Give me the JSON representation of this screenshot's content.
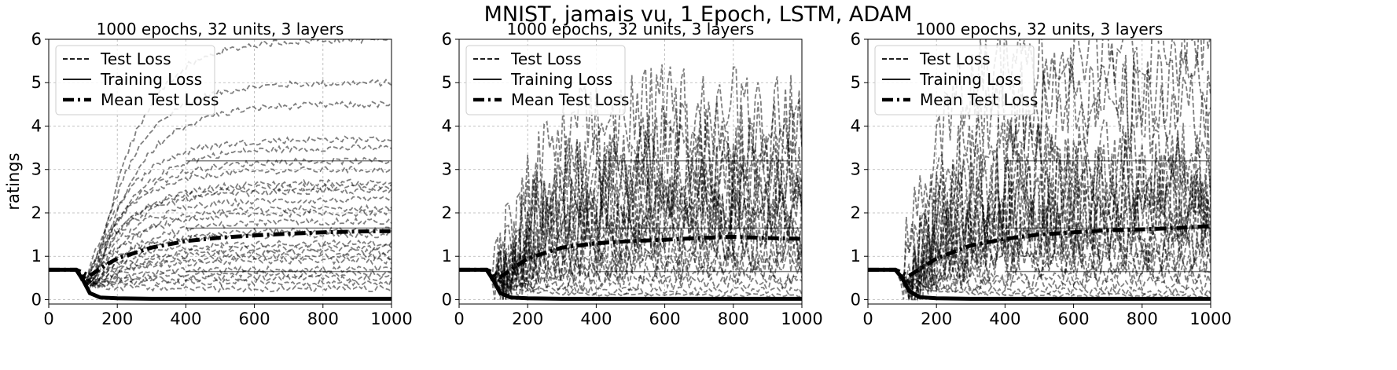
{
  "figure_title": "MNIST, jamais vu, 1 Epoch, LSTM, ADAM",
  "ylabel": "ratings",
  "chart_data": [
    {
      "type": "line",
      "title": "1000 epochs, 32 units, 3 layers",
      "xlim": [
        0,
        1000
      ],
      "ylim": [
        -0.1,
        6
      ],
      "xticks": [
        0,
        200,
        400,
        600,
        800,
        1000
      ],
      "yticks": [
        0,
        1,
        2,
        3,
        4,
        5,
        6
      ],
      "grid": true,
      "legend": {
        "placement": "top-left",
        "entries": [
          "Test Loss",
          "Training Loss",
          "Mean Test Loss"
        ]
      },
      "series": [
        {
          "name": "Mean Test Loss",
          "style": "dashdot",
          "x": [
            0,
            80,
            100,
            120,
            150,
            200,
            300,
            400,
            500,
            600,
            700,
            800,
            900,
            1000
          ],
          "y": [
            0.69,
            0.69,
            0.62,
            0.55,
            0.72,
            0.95,
            1.2,
            1.35,
            1.43,
            1.48,
            1.52,
            1.55,
            1.57,
            1.58
          ]
        },
        {
          "name": "Training Loss",
          "style": "solid",
          "x": [
            0,
            80,
            100,
            120,
            150,
            200,
            300,
            1000
          ],
          "y": [
            0.69,
            0.69,
            0.45,
            0.15,
            0.05,
            0.03,
            0.02,
            0.02
          ]
        }
      ],
      "test_runs_final": [
        5.0,
        6.0,
        4.5,
        3.7,
        3.5,
        3.2,
        3.0,
        2.7,
        2.6,
        2.5,
        2.3,
        2.1,
        2.0,
        1.8,
        1.6,
        1.5,
        1.3,
        1.2,
        1.1,
        1.0,
        0.9,
        0.7,
        0.6,
        0.5,
        0.4,
        0.25
      ]
    },
    {
      "type": "line",
      "title": "1000 epochs, 32 units, 3 layers",
      "xlim": [
        0,
        1000
      ],
      "ylim": [
        -0.1,
        6
      ],
      "xticks": [
        0,
        200,
        400,
        600,
        800,
        1000
      ],
      "yticks": [
        0,
        1,
        2,
        3,
        4,
        5,
        6
      ],
      "grid": true,
      "legend": {
        "placement": "top-left",
        "entries": [
          "Test Loss",
          "Training Loss",
          "Mean Test Loss"
        ]
      },
      "series": [
        {
          "name": "Mean Test Loss",
          "style": "dashdot",
          "x": [
            0,
            80,
            100,
            120,
            150,
            200,
            300,
            400,
            500,
            600,
            700,
            800,
            900,
            1000
          ],
          "y": [
            0.69,
            0.69,
            0.62,
            0.52,
            0.68,
            0.95,
            1.2,
            1.3,
            1.35,
            1.38,
            1.42,
            1.45,
            1.42,
            1.4
          ]
        },
        {
          "name": "Training Loss",
          "style": "solid",
          "x": [
            0,
            80,
            100,
            120,
            150,
            200,
            300,
            1000
          ],
          "y": [
            0.69,
            0.69,
            0.45,
            0.15,
            0.05,
            0.03,
            0.02,
            0.02
          ]
        }
      ],
      "test_runs_final": [
        4.4,
        3.5,
        3.2,
        3.0,
        2.8,
        2.5,
        2.2,
        2.0,
        1.7,
        1.6,
        1.5,
        1.2,
        1.0,
        0.8,
        0.6,
        0.4,
        0.2,
        0.1
      ]
    },
    {
      "type": "line",
      "title": "1000 epochs, 32 units, 3 layers",
      "xlim": [
        0,
        1000
      ],
      "ylim": [
        -0.1,
        6
      ],
      "xticks": [
        0,
        200,
        400,
        600,
        800,
        1000
      ],
      "yticks": [
        0,
        1,
        2,
        3,
        4,
        5,
        6
      ],
      "grid": true,
      "legend": {
        "placement": "top-left",
        "entries": [
          "Test Loss",
          "Training Loss",
          "Mean Test Loss"
        ]
      },
      "series": [
        {
          "name": "Mean Test Loss",
          "style": "dashdot",
          "x": [
            0,
            80,
            100,
            120,
            150,
            200,
            300,
            400,
            500,
            600,
            700,
            800,
            900,
            1000
          ],
          "y": [
            0.69,
            0.69,
            0.62,
            0.55,
            0.7,
            0.95,
            1.25,
            1.4,
            1.5,
            1.55,
            1.6,
            1.62,
            1.65,
            1.7
          ]
        },
        {
          "name": "Training Loss",
          "style": "solid",
          "x": [
            0,
            80,
            100,
            120,
            150,
            200,
            300,
            1000
          ],
          "y": [
            0.69,
            0.69,
            0.5,
            0.2,
            0.06,
            0.03,
            0.02,
            0.02
          ]
        }
      ],
      "test_runs_final": [
        6.0,
        4.8,
        4.4,
        3.2,
        3.0,
        2.8,
        2.5,
        2.2,
        2.0,
        1.8,
        1.6,
        1.4,
        1.2,
        1.0,
        0.8,
        0.6,
        0.4,
        0.2,
        0.1
      ]
    }
  ]
}
